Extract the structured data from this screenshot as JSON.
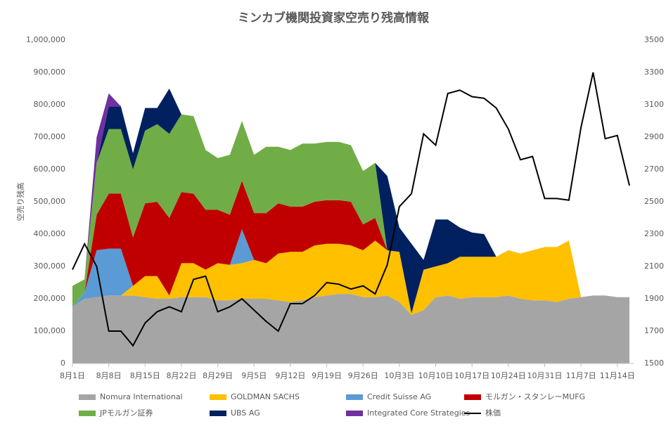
{
  "chart_data": {
    "type": "area",
    "stacked": true,
    "title": "ミンカブ機関投資家空売り残高情報",
    "y_label": "空売り残高",
    "categories": [
      "8月1日",
      null,
      null,
      "8月8日",
      null,
      null,
      "8月15日",
      null,
      null,
      "8月22日",
      null,
      null,
      "8月29日",
      null,
      null,
      "9月5日",
      null,
      null,
      "9月12日",
      null,
      null,
      "9月19日",
      null,
      null,
      "9月26日",
      null,
      null,
      "10月3日",
      null,
      null,
      "10月10日",
      null,
      null,
      "10月17日",
      null,
      null,
      "10月24日",
      null,
      null,
      "10月31日",
      null,
      null,
      "11月7日",
      null,
      null,
      "11月14日",
      null
    ],
    "ylim": [
      0,
      1000000
    ],
    "yticks": [
      {
        "value": 0,
        "label": "0"
      },
      {
        "value": 100000,
        "label": "100,000"
      },
      {
        "value": 200000,
        "label": "200,000"
      },
      {
        "value": 300000,
        "label": "300,000"
      },
      {
        "value": 400000,
        "label": "400,000"
      },
      {
        "value": 500000,
        "label": "500,000"
      },
      {
        "value": 600000,
        "label": "600,000"
      },
      {
        "value": 700000,
        "label": "700,000"
      },
      {
        "value": 800000,
        "label": "800,000"
      },
      {
        "value": 900000,
        "label": "900,000"
      },
      {
        "value": 1000000,
        "label": "1,000,000"
      }
    ],
    "y2lim": [
      1500,
      3500
    ],
    "y2ticks": [
      1500,
      1700,
      1900,
      2100,
      2300,
      2500,
      2700,
      2900,
      3100,
      3300,
      3500
    ],
    "legend": "bottom",
    "series": [
      {
        "name": "Nomura International",
        "color": "#a5a5a5",
        "values": [
          175000,
          200000,
          205000,
          210000,
          210000,
          210000,
          205000,
          200000,
          200000,
          205000,
          205000,
          205000,
          195000,
          195000,
          200000,
          200000,
          200000,
          195000,
          190000,
          195000,
          205000,
          210000,
          215000,
          215000,
          205000,
          205000,
          210000,
          190000,
          150000,
          165000,
          205000,
          210000,
          200000,
          205000,
          205000,
          205000,
          210000,
          200000,
          195000,
          195000,
          190000,
          200000,
          205000,
          210000,
          210000,
          205000,
          205000
        ]
      },
      {
        "name": "GOLDMAN SACHS",
        "color": "#ffc000",
        "values": [
          0,
          0,
          0,
          0,
          0,
          30000,
          65000,
          70000,
          10000,
          105000,
          105000,
          85000,
          115000,
          110000,
          110000,
          120000,
          110000,
          145000,
          155000,
          150000,
          160000,
          160000,
          155000,
          150000,
          145000,
          175000,
          140000,
          155000,
          5000,
          125000,
          95000,
          100000,
          130000,
          125000,
          125000,
          125000,
          140000,
          140000,
          155000,
          165000,
          170000,
          180000,
          0,
          0,
          0,
          0,
          0
        ]
      },
      {
        "name": "Credit Suisse AG",
        "color": "#5b9bd5",
        "values": [
          0,
          20000,
          145000,
          145000,
          145000,
          0,
          0,
          0,
          0,
          0,
          0,
          0,
          0,
          0,
          105000,
          0,
          0,
          0,
          0,
          0,
          0,
          0,
          0,
          0,
          0,
          0,
          0,
          0,
          0,
          0,
          0,
          0,
          0,
          0,
          0,
          0,
          0,
          0,
          0,
          0,
          0,
          0,
          0,
          0,
          0,
          0,
          0
        ]
      },
      {
        "name": "モルガン・スタンレーMUFG",
        "color": "#c00000",
        "values": [
          0,
          0,
          110000,
          170000,
          170000,
          150000,
          225000,
          230000,
          240000,
          220000,
          215000,
          185000,
          165000,
          155000,
          150000,
          145000,
          155000,
          155000,
          140000,
          140000,
          135000,
          135000,
          135000,
          135000,
          80000,
          70000,
          0,
          0,
          0,
          0,
          0,
          0,
          0,
          0,
          0,
          0,
          0,
          0,
          0,
          0,
          0,
          0,
          0,
          0,
          0,
          0,
          0
        ]
      },
      {
        "name": "JPモルガン証券",
        "color": "#70ad47",
        "values": [
          65000,
          40000,
          160000,
          200000,
          200000,
          210000,
          225000,
          240000,
          260000,
          240000,
          240000,
          185000,
          160000,
          185000,
          185000,
          180000,
          205000,
          175000,
          175000,
          195000,
          180000,
          180000,
          180000,
          175000,
          165000,
          170000,
          0,
          0,
          0,
          0,
          0,
          0,
          0,
          0,
          0,
          0,
          0,
          0,
          0,
          0,
          0,
          0,
          0,
          0,
          0,
          0,
          0
        ]
      },
      {
        "name": "UBS AG",
        "color": "#002060",
        "values": [
          0,
          0,
          0,
          70000,
          70000,
          50000,
          70000,
          50000,
          140000,
          0,
          0,
          0,
          0,
          0,
          0,
          0,
          0,
          0,
          0,
          0,
          0,
          0,
          0,
          0,
          0,
          0,
          230000,
          75000,
          215000,
          30000,
          145000,
          135000,
          90000,
          75000,
          70000,
          0,
          0,
          0,
          0,
          0,
          0,
          0,
          0,
          0,
          0,
          0,
          0
        ]
      },
      {
        "name": "Integrated Core Strategies",
        "color": "#7030a0",
        "values": [
          0,
          0,
          80000,
          40000,
          0,
          0,
          0,
          0,
          0,
          0,
          0,
          0,
          0,
          0,
          0,
          0,
          0,
          0,
          0,
          0,
          0,
          0,
          0,
          0,
          0,
          0,
          0,
          0,
          0,
          0,
          0,
          0,
          0,
          0,
          0,
          0,
          0,
          0,
          0,
          0,
          0,
          0,
          0,
          0,
          0,
          0,
          0
        ]
      },
      {
        "name": "株価",
        "type": "line",
        "axis": "y2",
        "color": "#000000",
        "values": [
          2080,
          2240,
          2100,
          1700,
          1700,
          1610,
          1750,
          1820,
          1850,
          1820,
          2020,
          2040,
          1820,
          1850,
          1900,
          1830,
          1760,
          1700,
          1870,
          1870,
          1920,
          2000,
          1990,
          1960,
          1980,
          1930,
          2110,
          2470,
          2550,
          2920,
          2850,
          3170,
          3190,
          3150,
          3140,
          3080,
          2950,
          2760,
          2780,
          2520,
          2520,
          2510,
          2960,
          3300,
          2890,
          2910,
          2600
        ]
      }
    ]
  }
}
